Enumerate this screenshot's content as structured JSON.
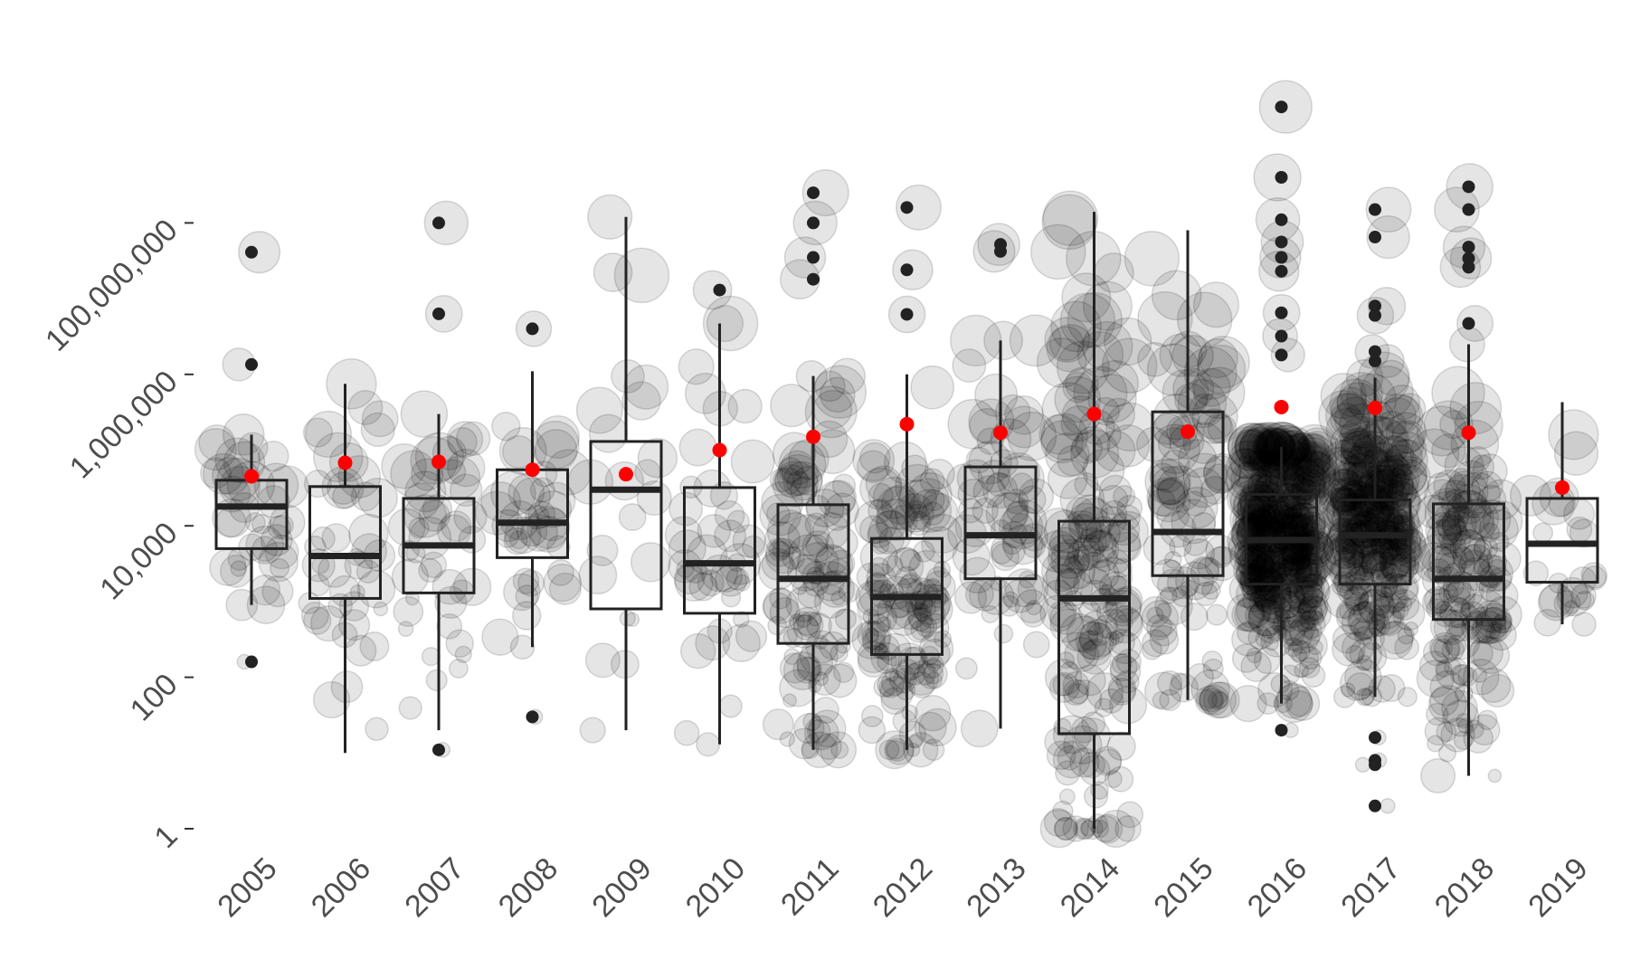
{
  "chart_data": {
    "type": "box",
    "title": "",
    "xlabel": "",
    "ylabel": "",
    "y_scale": "log10",
    "ylim": [
      1,
      1000000000
    ],
    "y_ticks": [
      {
        "value": 1,
        "label": "1"
      },
      {
        "value": 100,
        "label": "100"
      },
      {
        "value": 10000,
        "label": "10,000"
      },
      {
        "value": 1000000,
        "label": "1,000,000"
      },
      {
        "value": 100000000,
        "label": "100,000,000"
      }
    ],
    "grid": false,
    "legend": "none",
    "colors": {
      "box": "#222222",
      "mean": "#ff0000",
      "points": "#000000"
    },
    "categories": [
      "2005",
      "2006",
      "2007",
      "2008",
      "2009",
      "2010",
      "2011",
      "2012",
      "2013",
      "2014",
      "2015",
      "2016",
      "2017",
      "2018",
      "2019"
    ],
    "boxes": [
      {
        "year": "2005",
        "whisker_low": 900,
        "q1": 5000,
        "median": 18000,
        "q3": 40000,
        "whisker_high": 160000,
        "mean": 45000
      },
      {
        "year": "2006",
        "whisker_low": 10,
        "q1": 1100,
        "median": 4000,
        "q3": 33000,
        "whisker_high": 750000,
        "mean": 68000
      },
      {
        "year": "2007",
        "whisker_low": 20,
        "q1": 1300,
        "median": 5500,
        "q3": 23000,
        "whisker_high": 300000,
        "mean": 70000
      },
      {
        "year": "2008",
        "whisker_low": 250,
        "q1": 3800,
        "median": 11000,
        "q3": 55000,
        "whisker_high": 1100000,
        "mean": 55000
      },
      {
        "year": "2009",
        "whisker_low": 20,
        "q1": 800,
        "median": 30000,
        "q3": 130000,
        "whisker_high": 120000000,
        "mean": 48000
      },
      {
        "year": "2010",
        "whisker_low": 13,
        "q1": 700,
        "median": 3200,
        "q3": 32000,
        "whisker_high": 4700000,
        "mean": 100000
      },
      {
        "year": "2011",
        "whisker_low": 11,
        "q1": 280,
        "median": 2000,
        "q3": 19000,
        "whisker_high": 950000,
        "mean": 150000
      },
      {
        "year": "2012",
        "whisker_low": 11,
        "q1": 200,
        "median": 1150,
        "q3": 6800,
        "whisker_high": 1000000,
        "mean": 220000
      },
      {
        "year": "2013",
        "whisker_low": 21,
        "q1": 2000,
        "median": 7500,
        "q3": 60000,
        "whisker_high": 2800000,
        "mean": 170000
      },
      {
        "year": "2014",
        "whisker_low": 1,
        "q1": 18,
        "median": 1100,
        "q3": 11500,
        "whisker_high": 140000000,
        "mean": 300000
      },
      {
        "year": "2015",
        "whisker_low": 50,
        "q1": 2200,
        "median": 8300,
        "q3": 320000,
        "whisker_high": 80000000,
        "mean": 175000
      },
      {
        "year": "2016",
        "whisker_low": 45,
        "q1": 1700,
        "median": 6500,
        "q3": 26000,
        "whisker_high": 110000,
        "mean": 370000
      },
      {
        "year": "2017",
        "whisker_low": 55,
        "q1": 1700,
        "median": 7500,
        "q3": 22000,
        "whisker_high": 900000,
        "mean": 360000
      },
      {
        "year": "2018",
        "whisker_low": 5,
        "q1": 580,
        "median": 2000,
        "q3": 19500,
        "whisker_high": 2500000,
        "mean": 170000
      },
      {
        "year": "2019",
        "whisker_low": 500,
        "q1": 1800,
        "median": 5800,
        "q3": 23000,
        "whisker_high": 430000,
        "mean": 32000
      }
    ],
    "outliers": [
      {
        "year": "2005",
        "values": [
          41000000,
          1350000,
          160
        ]
      },
      {
        "year": "2006",
        "values": []
      },
      {
        "year": "2007",
        "values": [
          100000000,
          6300000,
          11
        ]
      },
      {
        "year": "2008",
        "values": [
          4000000,
          30
        ]
      },
      {
        "year": "2009",
        "values": []
      },
      {
        "year": "2010",
        "values": [
          13000000
        ]
      },
      {
        "year": "2011",
        "values": [
          250000000,
          100000000,
          35000000,
          18000000
        ]
      },
      {
        "year": "2012",
        "values": [
          160000000,
          24000000,
          6200000
        ]
      },
      {
        "year": "2013",
        "values": [
          52000000,
          42000000
        ]
      },
      {
        "year": "2014",
        "values": []
      },
      {
        "year": "2015",
        "values": []
      },
      {
        "year": "2016",
        "values": [
          3400000000,
          400000000,
          110000000,
          56000000,
          35000000,
          23000000,
          6500000,
          3200000,
          1800000,
          20
        ]
      },
      {
        "year": "2017",
        "values": [
          150000000,
          65000000,
          8000000,
          6000000,
          2000000,
          1500000,
          16,
          8,
          7,
          2
        ]
      },
      {
        "year": "2018",
        "values": [
          300000000,
          150000000,
          48000000,
          34000000,
          26000000,
          4700000
        ]
      },
      {
        "year": "2019",
        "values": []
      }
    ]
  }
}
